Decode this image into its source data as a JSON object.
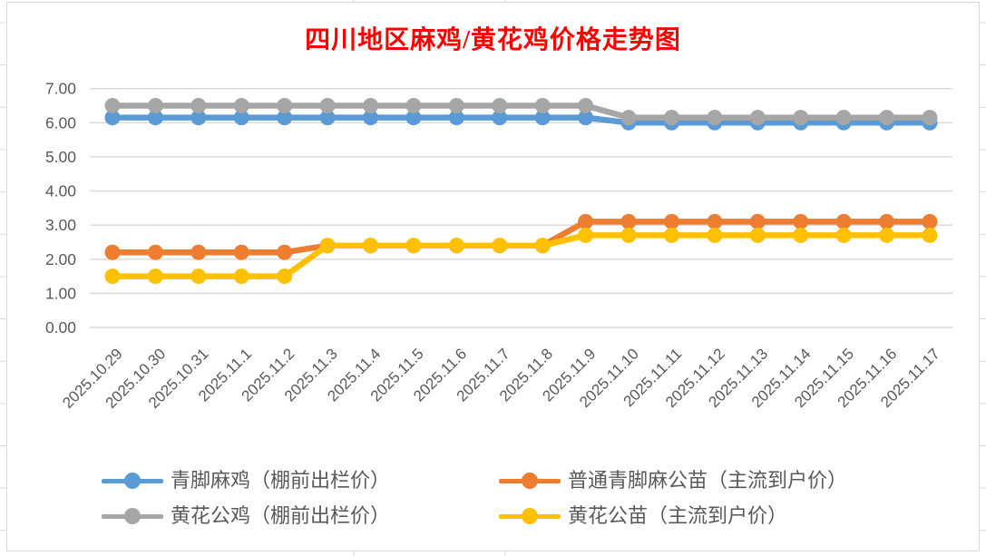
{
  "chart_data": {
    "type": "line",
    "title": "四川地区麻鸡/黄花鸡价格走势图",
    "title_color": "#FF0000",
    "categories": [
      "2025.10.29",
      "2025.10.30",
      "2025.10.31",
      "2025.11.1",
      "2025.11.2",
      "2025.11.3",
      "2025.11.4",
      "2025.11.5",
      "2025.11.6",
      "2025.11.7",
      "2025.11.8",
      "2025.11.9",
      "2025.11.10",
      "2025.11.11",
      "2025.11.12",
      "2025.11.13",
      "2025.11.14",
      "2025.11.15",
      "2025.11.16",
      "2025.11.17"
    ],
    "series": [
      {
        "name": "青脚麻鸡（棚前出栏价）",
        "color": "#5B9BD5",
        "values": [
          6.15,
          6.15,
          6.15,
          6.15,
          6.15,
          6.15,
          6.15,
          6.15,
          6.15,
          6.15,
          6.15,
          6.15,
          6.0,
          6.0,
          6.0,
          6.0,
          6.0,
          6.0,
          6.0,
          6.0
        ]
      },
      {
        "name": "普通青脚麻公苗（主流到户价）",
        "color": "#ED7D31",
        "values": [
          2.2,
          2.2,
          2.2,
          2.2,
          2.2,
          2.4,
          2.4,
          2.4,
          2.4,
          2.4,
          2.4,
          3.1,
          3.1,
          3.1,
          3.1,
          3.1,
          3.1,
          3.1,
          3.1,
          3.1
        ]
      },
      {
        "name": "黄花公鸡（棚前出栏价）",
        "color": "#A6A6A6",
        "values": [
          6.5,
          6.5,
          6.5,
          6.5,
          6.5,
          6.5,
          6.5,
          6.5,
          6.5,
          6.5,
          6.5,
          6.5,
          6.15,
          6.15,
          6.15,
          6.15,
          6.15,
          6.15,
          6.15,
          6.15
        ]
      },
      {
        "name": "黄花公苗（主流到户价）",
        "color": "#FFC000",
        "values": [
          1.5,
          1.5,
          1.5,
          1.5,
          1.5,
          2.4,
          2.4,
          2.4,
          2.4,
          2.4,
          2.4,
          2.7,
          2.7,
          2.7,
          2.7,
          2.7,
          2.7,
          2.7,
          2.7,
          2.7
        ]
      }
    ],
    "xlabel": "",
    "ylabel": "",
    "ylim": [
      0,
      7
    ],
    "ytick_labels": [
      "7.00",
      "6.00",
      "5.00",
      "4.00",
      "3.00",
      "2.00",
      "1.00",
      "0.00"
    ],
    "grid": true,
    "legend_position": "bottom",
    "axis_text_color": "#595959",
    "gridline_color": "#D9D9D9"
  }
}
